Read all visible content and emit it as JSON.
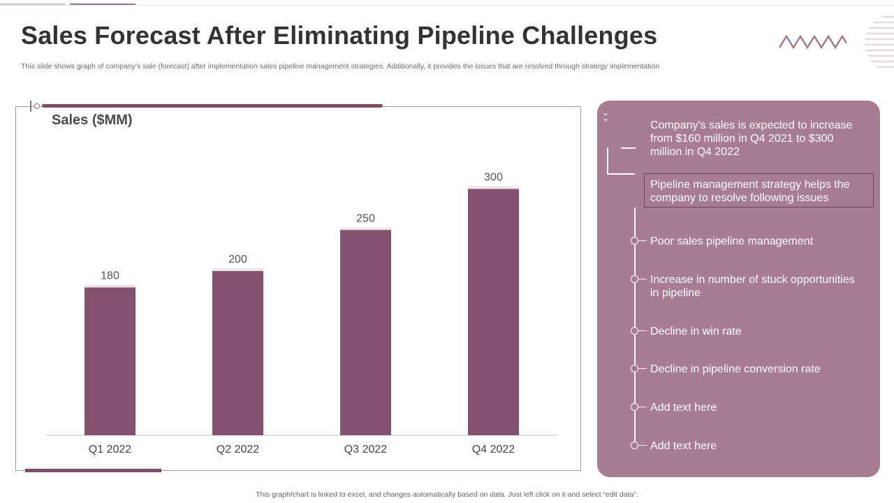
{
  "page": {
    "title": "Sales Forecast After Eliminating Pipeline Challenges",
    "subtitle": "This slide shows graph of company’s sale (forecast) after implementation sales pipeline management strategies. Additionally, it provides the issues that are resolved through strategy implementation",
    "footer": "This graph/chart is linked to excel, and changes automatically based on data. Just left click on it and select “edit data”."
  },
  "colors": {
    "bar": "#83506d",
    "panel": "#a87c92",
    "accent": "#7b4d68"
  },
  "chart_data": {
    "type": "bar",
    "ylabel": "Sales ($MM)",
    "categories": [
      "Q1 2022",
      "Q2 2022",
      "Q3 2022",
      "Q4 2022"
    ],
    "values": [
      180,
      200,
      250,
      300
    ],
    "data_labels": [
      "180",
      "200",
      "250",
      "300"
    ],
    "ylim": [
      0,
      360
    ],
    "grid": false,
    "legend": "none"
  },
  "panel": {
    "summary": "Company's sales is expected to increase from $160 million in Q4 2021 to $300 million in Q4 2022",
    "strategy": "Pipeline management strategy helps the company to resolve following issues",
    "issues": [
      "Poor sales pipeline management",
      "Increase  in number  of stuck opportunities in pipeline",
      "Decline in win rate",
      "Decline in pipeline conversion rate",
      "Add text here",
      "Add text here"
    ]
  }
}
